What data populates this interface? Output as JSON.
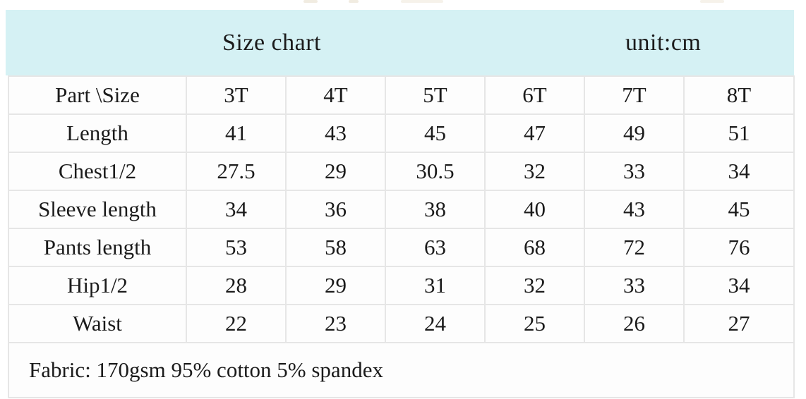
{
  "banner": {
    "title": "Size chart",
    "unit_label": "unit:cm"
  },
  "table": {
    "columns": [
      "Part \\Size",
      "3T",
      "4T",
      "5T",
      "6T",
      "7T",
      "8T"
    ],
    "rows": [
      {
        "label": "Length",
        "values": [
          41,
          43,
          45,
          47,
          49,
          51
        ]
      },
      {
        "label": "Chest1/2",
        "values": [
          27.5,
          29,
          30.5,
          32,
          33,
          34
        ]
      },
      {
        "label": "Sleeve length",
        "values": [
          34,
          36,
          38,
          40,
          43,
          45
        ]
      },
      {
        "label": "Pants length",
        "values": [
          53,
          58,
          63,
          68,
          72,
          76
        ]
      },
      {
        "label": "Hip1/2",
        "values": [
          28,
          29,
          31,
          32,
          33,
          34
        ]
      },
      {
        "label": "Waist",
        "values": [
          22,
          23,
          24,
          25,
          26,
          27
        ]
      }
    ]
  },
  "footer": {
    "fabric_note": "Fabric: 170gsm 95% cotton 5% spandex"
  },
  "colors": {
    "banner_background": "#d5f1f4",
    "grid_border": "#e6e6e6",
    "cell_background": "#fdfdfd",
    "text": "#1b1b1b"
  }
}
